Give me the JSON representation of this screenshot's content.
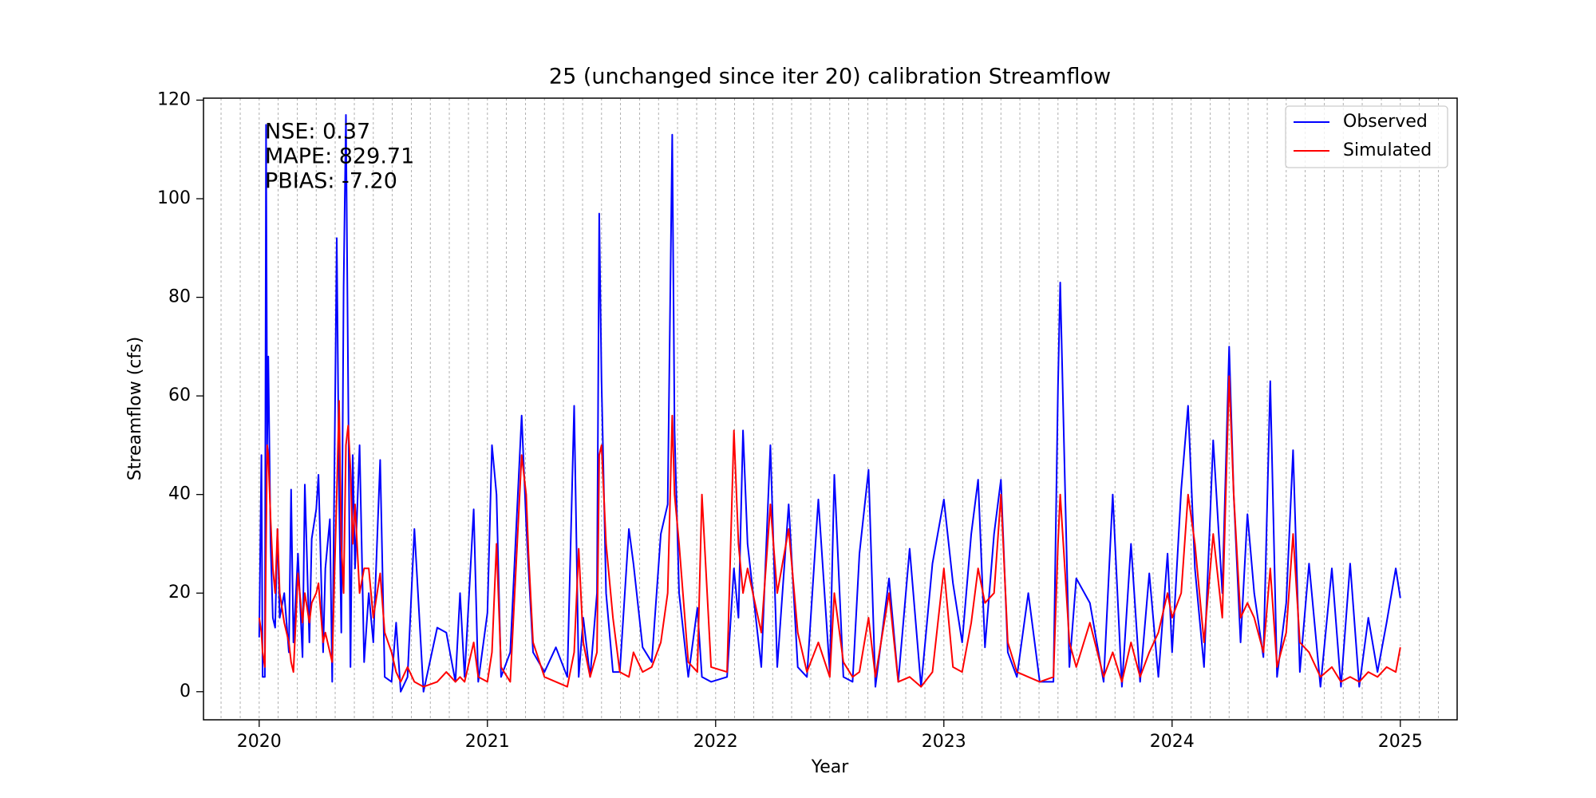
{
  "chart_data": {
    "type": "line",
    "title": "25 (unchanged since iter 20) calibration Streamflow",
    "xlabel": "Year",
    "ylabel": "Streamflow (cfs)",
    "annotations": [
      "NSE: 0.37",
      "MAPE: 829.71",
      "PBIAS: -7.20"
    ],
    "legend_position": "upper right",
    "xlim": [
      2019.756,
      2025.249
    ],
    "xticks": [
      2020,
      2021,
      2022,
      2023,
      2024,
      2025
    ],
    "xgrid": [
      2019.833,
      2019.917,
      2020.0,
      2020.083,
      2020.167,
      2020.25,
      2020.333,
      2020.417,
      2020.5,
      2020.583,
      2020.667,
      2020.75,
      2020.833,
      2020.917,
      2021.0,
      2021.083,
      2021.167,
      2021.25,
      2021.333,
      2021.417,
      2021.5,
      2021.583,
      2021.667,
      2021.75,
      2021.833,
      2021.917,
      2022.0,
      2022.083,
      2022.167,
      2022.25,
      2022.333,
      2022.417,
      2022.5,
      2022.583,
      2022.667,
      2022.75,
      2022.833,
      2022.917,
      2023.0,
      2023.083,
      2023.167,
      2023.25,
      2023.333,
      2023.417,
      2023.5,
      2023.583,
      2023.667,
      2023.75,
      2023.833,
      2023.917,
      2024.0,
      2024.083,
      2024.167,
      2024.25,
      2024.333,
      2024.417,
      2024.5,
      2024.583,
      2024.667,
      2024.75,
      2024.833,
      2024.917,
      2025.0,
      2025.083,
      2025.167
    ],
    "ylim": [
      -5.7,
      120.4
    ],
    "yticks": [
      0,
      20,
      40,
      60,
      80,
      100,
      120
    ],
    "x": [
      2020.0,
      2020.01,
      2020.015,
      2020.025,
      2020.03,
      2020.035,
      2020.04,
      2020.05,
      2020.06,
      2020.07,
      2020.08,
      2020.09,
      2020.11,
      2020.13,
      2020.14,
      2020.15,
      2020.17,
      2020.19,
      2020.2,
      2020.22,
      2020.23,
      2020.25,
      2020.26,
      2020.28,
      2020.29,
      2020.31,
      2020.32,
      2020.33,
      2020.34,
      2020.35,
      2020.36,
      2020.37,
      2020.38,
      2020.39,
      2020.4,
      2020.41,
      2020.42,
      2020.44,
      2020.46,
      2020.48,
      2020.5,
      2020.53,
      2020.55,
      2020.58,
      2020.6,
      2020.62,
      2020.65,
      2020.68,
      2020.72,
      2020.78,
      2020.82,
      2020.86,
      2020.88,
      2020.9,
      2020.94,
      2020.96,
      2021.0,
      2021.02,
      2021.04,
      2021.06,
      2021.1,
      2021.15,
      2021.17,
      2021.18,
      2021.2,
      2021.25,
      2021.3,
      2021.35,
      2021.38,
      2021.4,
      2021.42,
      2021.45,
      2021.48,
      2021.49,
      2021.5,
      2021.52,
      2021.55,
      2021.58,
      2021.62,
      2021.64,
      2021.68,
      2021.72,
      2021.76,
      2021.79,
      2021.81,
      2021.82,
      2021.84,
      2021.88,
      2021.92,
      2021.94,
      2021.98,
      2022.05,
      2022.08,
      2022.1,
      2022.12,
      2022.14,
      2022.2,
      2022.24,
      2022.27,
      2022.32,
      2022.36,
      2022.4,
      2022.45,
      2022.5,
      2022.52,
      2022.56,
      2022.6,
      2022.63,
      2022.67,
      2022.7,
      2022.76,
      2022.8,
      2022.85,
      2022.9,
      2022.95,
      2023.0,
      2023.04,
      2023.08,
      2023.12,
      2023.15,
      2023.18,
      2023.22,
      2023.25,
      2023.28,
      2023.32,
      2023.37,
      2023.42,
      2023.48,
      2023.5,
      2023.51,
      2023.53,
      2023.55,
      2023.58,
      2023.64,
      2023.7,
      2023.74,
      2023.78,
      2023.82,
      2023.86,
      2023.9,
      2023.94,
      2023.98,
      2024.0,
      2024.04,
      2024.07,
      2024.1,
      2024.14,
      2024.18,
      2024.22,
      2024.25,
      2024.27,
      2024.3,
      2024.33,
      2024.36,
      2024.4,
      2024.43,
      2024.46,
      2024.5,
      2024.53,
      2024.56,
      2024.6,
      2024.65,
      2024.7,
      2024.74,
      2024.78,
      2024.82,
      2024.86,
      2024.9,
      2024.94,
      2024.98,
      2025.0
    ],
    "series": [
      {
        "name": "Observed",
        "color": "#0000ff",
        "values": [
          11,
          48,
          3,
          3,
          115,
          50,
          68,
          30,
          15,
          13,
          33,
          15,
          20,
          8,
          41,
          10,
          28,
          7,
          42,
          10,
          31,
          37,
          44,
          8,
          25,
          35,
          2,
          47,
          92,
          40,
          12,
          82,
          117,
          62,
          5,
          48,
          25,
          50,
          6,
          20,
          10,
          47,
          3,
          2,
          14,
          0,
          3,
          33,
          0,
          13,
          12,
          2,
          20,
          3,
          37,
          2,
          16,
          50,
          40,
          3,
          8,
          56,
          34,
          25,
          8,
          4,
          9,
          3,
          58,
          3,
          15,
          3,
          20,
          97,
          63,
          20,
          4,
          4,
          33,
          26,
          9,
          6,
          32,
          38,
          113,
          53,
          20,
          3,
          17,
          3,
          2,
          3,
          25,
          15,
          53,
          30,
          5,
          50,
          5,
          38,
          5,
          3,
          39,
          4,
          44,
          3,
          2,
          28,
          45,
          1,
          23,
          2,
          29,
          1,
          26,
          39,
          22,
          10,
          32,
          43,
          9,
          32,
          43,
          8,
          3,
          20,
          2,
          2,
          62,
          83,
          43,
          5,
          23,
          18,
          2,
          40,
          1,
          30,
          2,
          24,
          3,
          28,
          8,
          41,
          58,
          25,
          5,
          51,
          20,
          70,
          40,
          10,
          36,
          20,
          7,
          63,
          3,
          18,
          49,
          4,
          26,
          1,
          25,
          1,
          26,
          1,
          15,
          4,
          14,
          25,
          19
        ]
      },
      {
        "name": "Simulated",
        "color": "#ff0000",
        "values": [
          15,
          12,
          8,
          5,
          30,
          50,
          48,
          35,
          25,
          20,
          33,
          20,
          14,
          10,
          6,
          4,
          24,
          14,
          20,
          14,
          18,
          20,
          22,
          10,
          12,
          8,
          6,
          24,
          40,
          59,
          30,
          20,
          50,
          54,
          45,
          30,
          38,
          20,
          25,
          25,
          15,
          24,
          12,
          8,
          4,
          2,
          5,
          2,
          1,
          2,
          4,
          2,
          3,
          2,
          10,
          3,
          2,
          8,
          30,
          5,
          2,
          48,
          40,
          28,
          10,
          3,
          2,
          1,
          8,
          29,
          10,
          3,
          8,
          48,
          50,
          30,
          15,
          4,
          3,
          8,
          4,
          5,
          10,
          20,
          56,
          40,
          30,
          6,
          4,
          40,
          5,
          4,
          53,
          30,
          20,
          25,
          12,
          38,
          20,
          33,
          12,
          4,
          10,
          3,
          20,
          6,
          3,
          4,
          15,
          3,
          20,
          2,
          3,
          1,
          4,
          25,
          5,
          4,
          14,
          25,
          18,
          20,
          40,
          10,
          4,
          3,
          2,
          3,
          30,
          40,
          25,
          10,
          5,
          14,
          3,
          8,
          2,
          10,
          3,
          8,
          12,
          20,
          15,
          20,
          40,
          30,
          10,
          32,
          15,
          64,
          40,
          15,
          18,
          15,
          8,
          25,
          5,
          12,
          32,
          10,
          8,
          3,
          5,
          2,
          3,
          2,
          4,
          3,
          5,
          4,
          9
        ]
      }
    ]
  }
}
